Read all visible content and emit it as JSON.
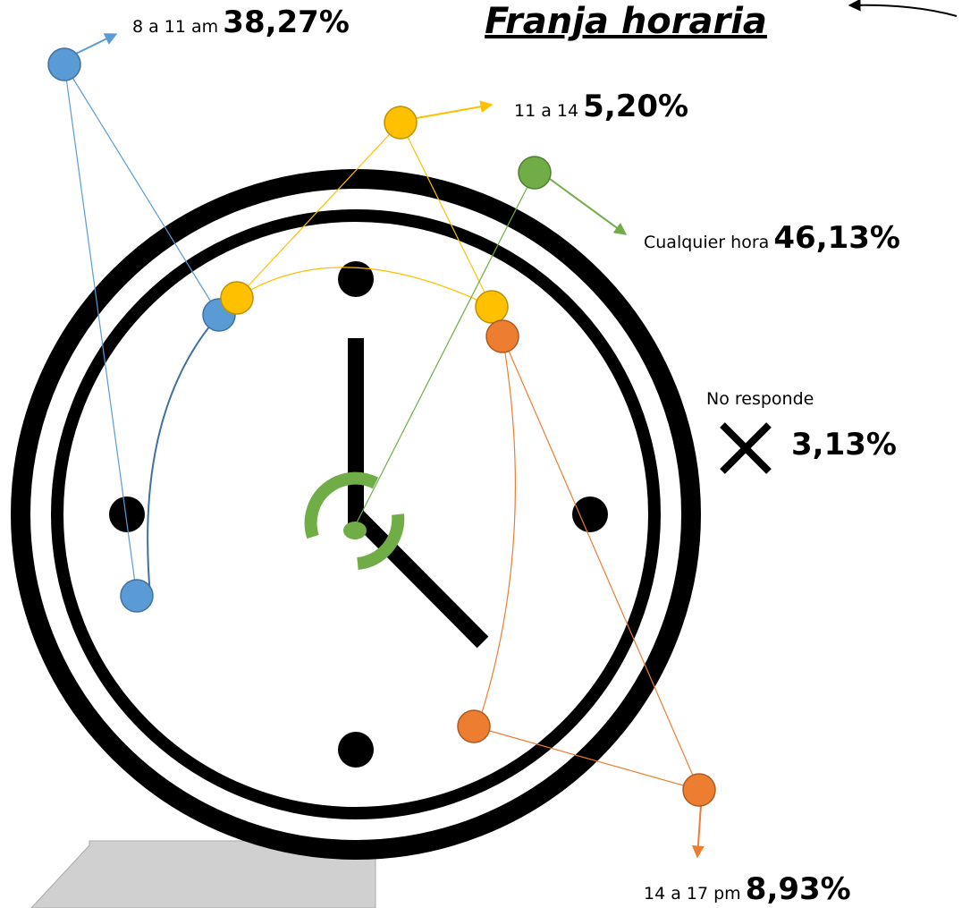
{
  "title": "Franja horaria",
  "items": [
    {
      "label": "8 a 11 am",
      "value": "38,27%"
    },
    {
      "label": "11 a 14",
      "value": "5,20%"
    },
    {
      "label": "Cualquier hora",
      "value": "46,13%"
    },
    {
      "label": "No responde",
      "value": "3,13%"
    },
    {
      "label": "14 a 17 pm",
      "value": "8,93%"
    }
  ]
}
